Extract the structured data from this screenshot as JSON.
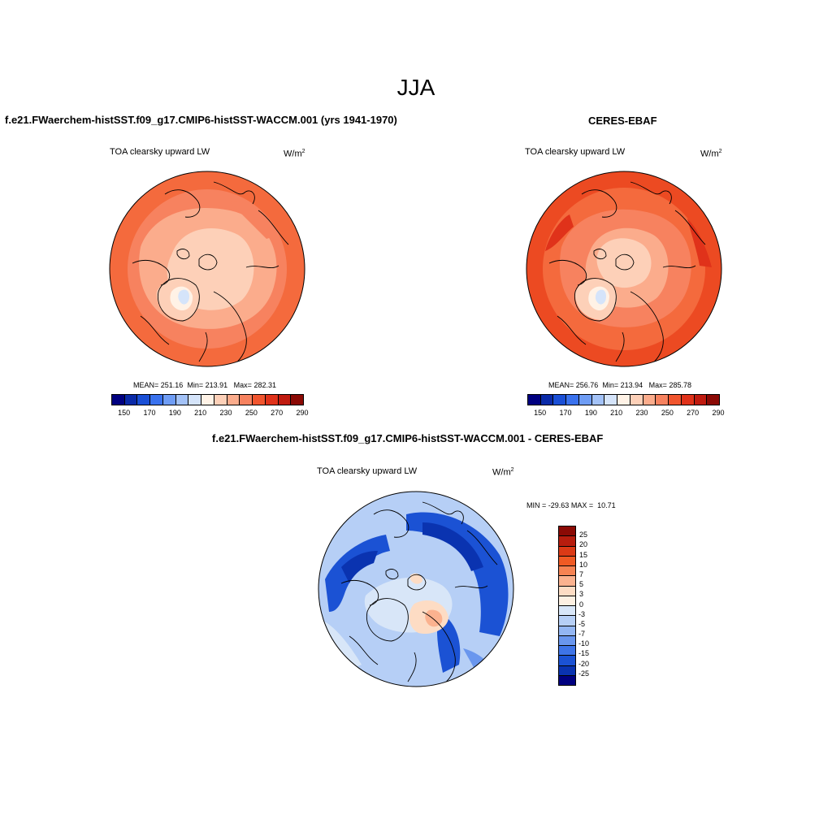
{
  "title": "JJA",
  "panels": [
    {
      "title": "f.e21.FWaerchem-histSST.f09_g17.CMIP6-histSST-WACCM.001 (yrs 1941-1970)",
      "subtitle": "TOA clearsky upward LW",
      "units_base": "W/m",
      "units_exp": "2",
      "stats": {
        "mean_label": "MEAN=",
        "mean": "251.16",
        "min_label": "Min=",
        "min": "213.91",
        "max_label": "Max=",
        "max": "282.31"
      }
    },
    {
      "title": "CERES-EBAF",
      "subtitle": "TOA clearsky upward LW",
      "units_base": "W/m",
      "units_exp": "2",
      "stats": {
        "mean_label": "MEAN=",
        "mean": "256.76",
        "min_label": "Min=",
        "min": "213.94",
        "max_label": "Max=",
        "max": "285.78"
      }
    },
    {
      "title": "f.e21.FWaerchem-histSST.f09_g17.CMIP6-histSST-WACCM.001 - CERES-EBAF",
      "subtitle": "TOA clearsky upward LW",
      "units_base": "W/m",
      "units_exp": "2",
      "stats": {
        "min_label": "MIN =",
        "min": "-29.63",
        "max_label": "MAX =",
        "max": "10.71"
      }
    }
  ],
  "colorbar_abs": {
    "colors": [
      "#000080",
      "#0a2aa8",
      "#1a4fd6",
      "#3a72ee",
      "#6f9df5",
      "#a3c2f7",
      "#d5e4fa",
      "#fff2e6",
      "#fdd0b8",
      "#fbac8c",
      "#f7825f",
      "#f1552e",
      "#e0321a",
      "#c01b0f",
      "#8b0a05"
    ],
    "tick_labels": [
      "150",
      "170",
      "190",
      "210",
      "230",
      "250",
      "270",
      "290"
    ]
  },
  "colorbar_diff": {
    "colors": [
      "#8b0a05",
      "#b71d0e",
      "#db3a16",
      "#f05a24",
      "#f68353",
      "#fbb28f",
      "#fddcc4",
      "#fdf0e2",
      "#d8e6f8",
      "#b6cff6",
      "#93b6f3",
      "#6996ee",
      "#3e74e8",
      "#1b52d4",
      "#0a33b0",
      "#000080"
    ],
    "tick_labels": [
      "25",
      "20",
      "15",
      "10",
      "7",
      "5",
      "3",
      "0",
      "-3",
      "-5",
      "-7",
      "-10",
      "-15",
      "-20",
      "-25"
    ]
  },
  "chart_data": [
    {
      "type": "heatmap",
      "title": "f.e21.FWaerchem-histSST.f09_g17.CMIP6-histSST-WACCM.001 (yrs 1941-1970)",
      "variable": "TOA clearsky upward LW",
      "units": "W/m2",
      "mean": 251.16,
      "min": 213.91,
      "max": 282.31,
      "levels": [
        150,
        170,
        190,
        210,
        230,
        250,
        270,
        290
      ],
      "projection": "north polar stereographic"
    },
    {
      "type": "heatmap",
      "title": "CERES-EBAF",
      "variable": "TOA clearsky upward LW",
      "units": "W/m2",
      "mean": 256.76,
      "min": 213.94,
      "max": 285.78,
      "levels": [
        150,
        170,
        190,
        210,
        230,
        250,
        270,
        290
      ],
      "projection": "north polar stereographic"
    },
    {
      "type": "heatmap",
      "title": "f.e21.FWaerchem-histSST.f09_g17.CMIP6-histSST-WACCM.001 - CERES-EBAF",
      "variable": "TOA clearsky upward LW",
      "units": "W/m2",
      "min": -29.63,
      "max": 10.71,
      "levels": [
        25,
        20,
        15,
        10,
        7,
        5,
        3,
        0,
        -3,
        -5,
        -7,
        -10,
        -15,
        -20,
        -25
      ],
      "projection": "north polar stereographic"
    }
  ]
}
